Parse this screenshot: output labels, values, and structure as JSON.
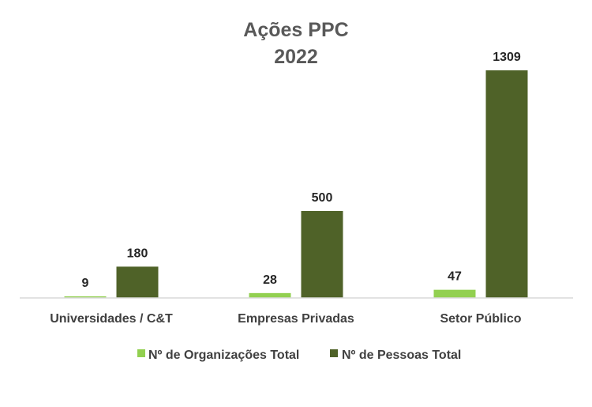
{
  "chart_data": {
    "type": "bar",
    "title": "Ações PPC",
    "subtitle": "2022",
    "categories": [
      "Universidades / C&T",
      "Empresas Privadas",
      "Setor Público"
    ],
    "series": [
      {
        "name": "Nº de Organizações Total",
        "values": [
          9,
          28,
          47
        ],
        "color": "#92d050"
      },
      {
        "name": "Nº de Pessoas Total",
        "values": [
          180,
          500,
          1309
        ],
        "color": "#4f6228"
      }
    ],
    "ylim": [
      0,
      1400
    ],
    "grid": false,
    "legend_position": "bottom"
  }
}
